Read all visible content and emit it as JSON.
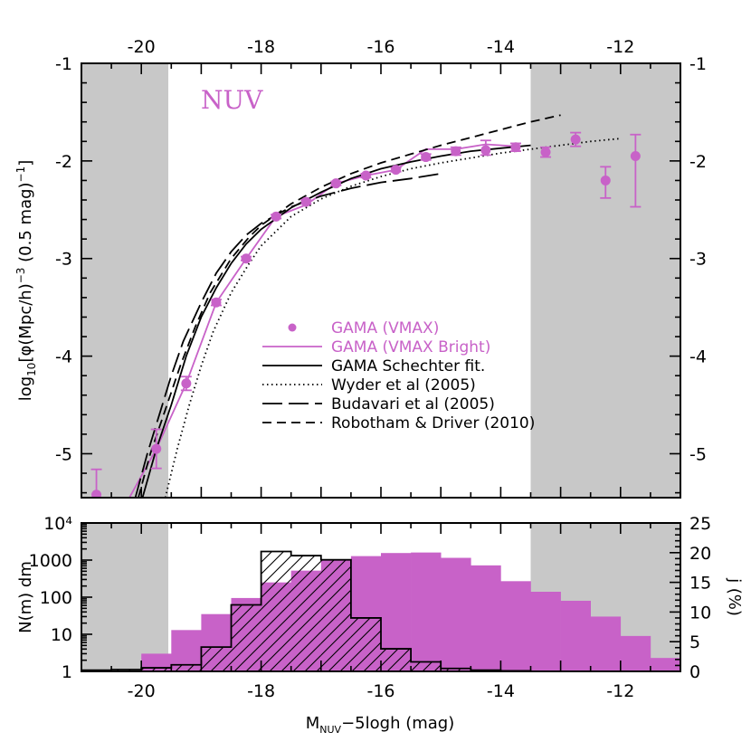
{
  "chart_data": [
    {
      "type": "line",
      "panel_label": "NUV",
      "ylabel": "log10[φ(Mpc/h)^-3 (0.5 mag)^-1]",
      "xlim": [
        -21,
        -11
      ],
      "ylim": [
        -5.45,
        -1
      ],
      "x_ticks_top": [
        "-20",
        "-18",
        "-16",
        "-14",
        "-12"
      ],
      "y_ticks_left": [
        "-1",
        "-2",
        "-3",
        "-4",
        "-5"
      ],
      "y_ticks_right": [
        "-1",
        "-2",
        "-3",
        "-4",
        "-5"
      ],
      "shaded_regions": [
        [
          -21,
          -19.55
        ],
        [
          -13.5,
          -11
        ]
      ],
      "legend_position": "center",
      "series": [
        {
          "name": "GAMA (VMAX)",
          "style": "points-with-errorbars",
          "color": "#c862c8",
          "x": [
            -20.75,
            -19.75,
            -19.25,
            -18.75,
            -18.25,
            -17.75,
            -17.25,
            -16.75,
            -16.25,
            -15.75,
            -15.25,
            -14.75,
            -14.25,
            -13.75,
            -13.25,
            -12.75,
            -12.25,
            -11.75
          ],
          "y": [
            -5.42,
            -4.95,
            -4.28,
            -3.45,
            -3.0,
            -2.57,
            -2.42,
            -2.23,
            -2.15,
            -2.09,
            -1.96,
            -1.9,
            -1.89,
            -1.86,
            -1.91,
            -1.78,
            -2.2,
            -1.95
          ],
          "yerr_low": [
            0.1,
            0.2,
            0.07,
            0.03,
            0.02,
            0.02,
            0.02,
            0.02,
            0.02,
            0.02,
            0.03,
            0.04,
            0.05,
            0.04,
            0.05,
            0.07,
            0.18,
            0.52
          ],
          "yerr_high": [
            0.26,
            0.2,
            0.07,
            0.03,
            0.02,
            0.02,
            0.02,
            0.02,
            0.02,
            0.02,
            0.03,
            0.04,
            0.1,
            0.04,
            0.05,
            0.07,
            0.14,
            0.22
          ]
        },
        {
          "name": "GAMA (VMAX Bright)",
          "style": "solid",
          "color": "#c862c8",
          "x": [
            -20.2,
            -19.75,
            -19.25,
            -18.75,
            -18.25,
            -17.75,
            -17.25,
            -16.75,
            -16.25,
            -15.75,
            -15.25,
            -14.75,
            -14.25,
            -13.75
          ],
          "y": [
            -5.45,
            -4.95,
            -4.28,
            -3.45,
            -3.0,
            -2.57,
            -2.45,
            -2.23,
            -2.15,
            -2.09,
            -1.88,
            -1.88,
            -1.83,
            -1.85
          ]
        },
        {
          "name": "GAMA Schechter fit.",
          "style": "solid",
          "color": "#000000",
          "x": [
            -19.98,
            -19.75,
            -19.5,
            -19.25,
            -19.0,
            -18.75,
            -18.5,
            -18.25,
            -18.0,
            -17.5,
            -17.0,
            -16.5,
            -16.0,
            -15.5,
            -15.0,
            -14.5,
            -14.0,
            -13.5
          ],
          "y": [
            -5.45,
            -4.95,
            -4.5,
            -4.0,
            -3.6,
            -3.3,
            -3.05,
            -2.85,
            -2.7,
            -2.48,
            -2.32,
            -2.18,
            -2.08,
            -2.01,
            -1.95,
            -1.9,
            -1.87,
            -1.84
          ]
        },
        {
          "name": "Wyder et al (2005)",
          "style": "dotted",
          "color": "#000000",
          "x": [
            -19.6,
            -19.4,
            -19.2,
            -19.0,
            -18.8,
            -18.5,
            -18.2,
            -18.0,
            -17.5,
            -17.0,
            -16.5,
            -16.0,
            -15.5,
            -15.0,
            -14.5,
            -14.0,
            -13.5,
            -13.0,
            -12.5,
            -12.0
          ],
          "y": [
            -5.45,
            -4.95,
            -4.5,
            -4.1,
            -3.75,
            -3.35,
            -3.05,
            -2.87,
            -2.57,
            -2.39,
            -2.26,
            -2.16,
            -2.08,
            -2.02,
            -1.97,
            -1.92,
            -1.88,
            -1.84,
            -1.8,
            -1.77
          ]
        },
        {
          "name": "Budavari et al (2005)",
          "style": "long-dashed",
          "color": "#000000",
          "x": [
            -20.1,
            -19.9,
            -19.7,
            -19.5,
            -19.3,
            -19.0,
            -18.75,
            -18.5,
            -18.25,
            -18.0,
            -17.5,
            -17.0,
            -16.5,
            -16.0,
            -15.5,
            -15.0
          ],
          "y": [
            -5.45,
            -5.0,
            -4.6,
            -4.2,
            -3.85,
            -3.45,
            -3.15,
            -2.93,
            -2.76,
            -2.64,
            -2.47,
            -2.36,
            -2.28,
            -2.22,
            -2.18,
            -2.13
          ]
        },
        {
          "name": "Robotham & Driver (2010)",
          "style": "dashed",
          "color": "#000000",
          "x": [
            -20.05,
            -19.85,
            -19.6,
            -19.35,
            -19.1,
            -18.85,
            -18.5,
            -18.2,
            -18.0,
            -17.5,
            -17.0,
            -16.5,
            -16.0,
            -15.5,
            -15.0,
            -14.5,
            -14.0,
            -13.5,
            -13.0
          ],
          "y": [
            -5.45,
            -5.0,
            -4.55,
            -4.1,
            -3.7,
            -3.35,
            -3.0,
            -2.78,
            -2.66,
            -2.44,
            -2.27,
            -2.13,
            -2.02,
            -1.93,
            -1.84,
            -1.76,
            -1.68,
            -1.6,
            -1.53
          ]
        }
      ]
    },
    {
      "type": "bar",
      "xlabel": "M_NUV − 5logh (mag)",
      "xlabel_main": "M",
      "xlabel_sub": "NUV",
      "xlabel_rest": "−5logh (mag)",
      "ylabel_left": "N(m) dm",
      "ylabel_right": "j (%)",
      "xlim": [
        -21,
        -11
      ],
      "x_ticks_bottom": [
        "-20",
        "-18",
        "-16",
        "-14",
        "-12"
      ],
      "y_ticks_left": [
        "1",
        "10",
        "100",
        "1000",
        "10⁴"
      ],
      "y_ticks_right": [
        "0",
        "5",
        "10",
        "15",
        "20",
        "25"
      ],
      "ylim_left_log": [
        1,
        10000
      ],
      "ylim_right": [
        0,
        25
      ],
      "shaded_regions": [
        [
          -21,
          -19.55
        ],
        [
          -13.5,
          -11
        ]
      ],
      "bin_width": 0.5,
      "series": [
        {
          "name": "N(m) dm",
          "style": "filled-bars",
          "color": "#c862c8",
          "bin_starts": [
            -20.0,
            -19.5,
            -19.0,
            -18.5,
            -18.0,
            -17.5,
            -17.0,
            -16.5,
            -16.0,
            -15.5,
            -15.0,
            -14.5,
            -14.0,
            -13.5,
            -13.0,
            -12.5,
            -12.0,
            -11.5
          ],
          "values": [
            3,
            13,
            35,
            95,
            250,
            520,
            1000,
            1280,
            1550,
            1600,
            1150,
            720,
            270,
            140,
            80,
            30,
            9,
            2.3
          ]
        },
        {
          "name": "j (%)",
          "style": "hatched-step",
          "color": "#000000",
          "bin_starts": [
            -21.0,
            -20.5,
            -20.0,
            -19.5,
            -19.0,
            -18.5,
            -18.0,
            -17.5,
            -17.0,
            -16.5,
            -16.0,
            -15.5,
            -15.0,
            -14.5,
            -14.0,
            -13.5
          ],
          "values": [
            0.2,
            0.3,
            0.6,
            1.1,
            4.1,
            11.2,
            20.2,
            19.5,
            18.8,
            9.0,
            3.8,
            1.6,
            0.5,
            0.2,
            0.1,
            0.0
          ]
        }
      ]
    }
  ],
  "colors": {
    "gama": "#c862c8",
    "shade": "#c8c8c8",
    "axis": "#000000"
  }
}
